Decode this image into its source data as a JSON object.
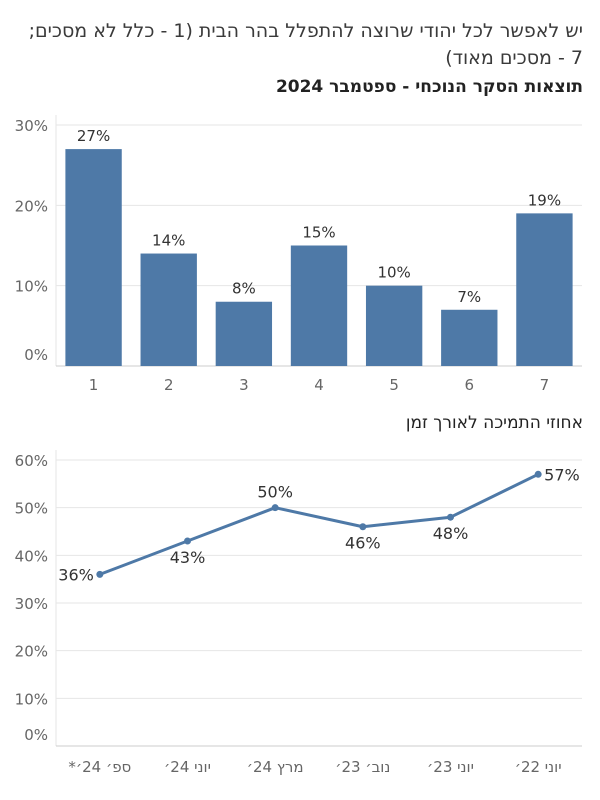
{
  "header": {
    "title": "יש לאפשר לכל יהודי שרוצה להתפלל בהר הבית (1 - כלל לא מסכים; 7 - מסכים מאוד)",
    "subtitle": "תוצאות הסקר הנוכחי - ספטמבר 2024"
  },
  "line_title": "אחוזי התמיכה לאורך זמן",
  "colors": {
    "bar": "#4e79a7",
    "line": "#4e79a7",
    "grid": "#e6e6e6",
    "axis_text": "#666666"
  },
  "chart_data": [
    {
      "type": "bar",
      "title": "תוצאות הסקר הנוכחי - ספטמבר 2024",
      "categories": [
        "1",
        "2",
        "3",
        "4",
        "5",
        "6",
        "7"
      ],
      "values": [
        27,
        14,
        8,
        15,
        10,
        7,
        19
      ],
      "value_labels": [
        "27%",
        "14%",
        "8%",
        "15%",
        "10%",
        "7%",
        "19%"
      ],
      "yticks": [
        "0%",
        "10%",
        "20%",
        "30%"
      ],
      "ylim": [
        0,
        30
      ],
      "grid": true
    },
    {
      "type": "line",
      "title": "אחוזי התמיכה לאורך זמן",
      "x": [
        "ספ׳ 24׳*",
        "יוני 24׳",
        "מרץ 24׳",
        "נוב׳ 23׳",
        "יוני 23׳",
        "יוני 22׳"
      ],
      "values": [
        36,
        43,
        50,
        46,
        48,
        57
      ],
      "value_labels": [
        "36%",
        "43%",
        "50%",
        "46%",
        "48%",
        "57%"
      ],
      "yticks": [
        "0%",
        "10%",
        "20%",
        "30%",
        "40%",
        "50%",
        "60%"
      ],
      "ylim": [
        0,
        60
      ],
      "grid": true
    }
  ]
}
